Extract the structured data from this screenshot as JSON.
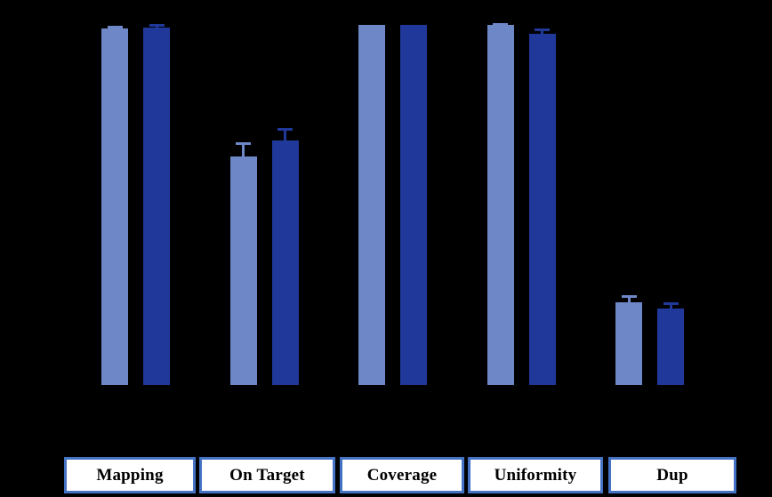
{
  "canvas": {
    "background_color": "#000000"
  },
  "chart_data": {
    "type": "bar",
    "categories": [
      "Mapping",
      "On Target",
      "Coverage",
      "Uniformity",
      "Dup"
    ],
    "series": [
      {
        "name": "light-blue-series",
        "color": "#6D87C7",
        "values": [
          99,
          63.5,
          100,
          100,
          23
        ],
        "errors": [
          0.8,
          4,
          0,
          0.6,
          2
        ]
      },
      {
        "name": "dark-blue-series",
        "color": "#1F3899",
        "values": [
          99.3,
          68,
          100,
          97.5,
          21.2
        ],
        "errors": [
          1,
          3.4,
          0,
          1.5,
          1.8
        ]
      }
    ],
    "ylim": [
      0,
      100
    ],
    "grid": false,
    "legend_position": "none",
    "axis_tick_labels_visible": false,
    "error_bars": true
  },
  "category_labels": {
    "box_fill": "#FFFFFF",
    "box_border_color": "#4472C4",
    "text_color": "#000000"
  }
}
